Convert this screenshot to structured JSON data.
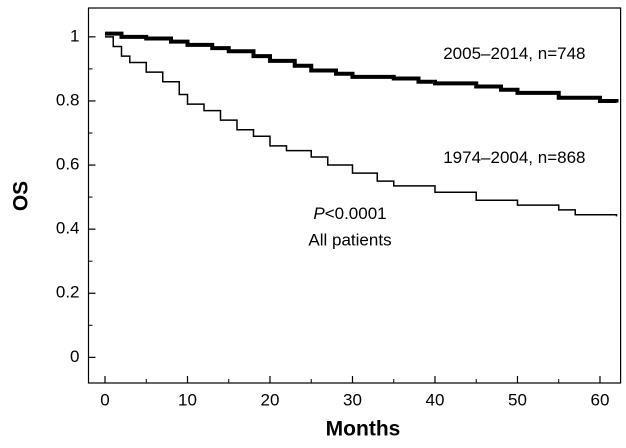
{
  "chart_data": {
    "type": "step",
    "xlabel": "Months",
    "ylabel": "OS",
    "xlim": [
      -2,
      62.5
    ],
    "ylim": [
      -0.08,
      1.09
    ],
    "xticks": [
      0,
      10,
      20,
      30,
      40,
      50,
      60
    ],
    "yticks": [
      0,
      0.2,
      0.4,
      0.6,
      0.8,
      1
    ],
    "xminor": [
      5,
      15,
      25,
      35,
      45,
      55
    ],
    "yminor": [
      0.1,
      0.3,
      0.5,
      0.7,
      0.9
    ],
    "series": [
      {
        "name": "2005–2014, n=748",
        "color": "#000000",
        "width": 4,
        "x": [
          0,
          2,
          5,
          8,
          10,
          13,
          15,
          18,
          20,
          23,
          25,
          28,
          30,
          35,
          38,
          40,
          45,
          48,
          50,
          55,
          60,
          62
        ],
        "values": [
          1.01,
          1.0,
          0.995,
          0.985,
          0.975,
          0.965,
          0.955,
          0.94,
          0.925,
          0.91,
          0.895,
          0.885,
          0.875,
          0.87,
          0.86,
          0.855,
          0.845,
          0.835,
          0.825,
          0.81,
          0.8,
          0.795
        ]
      },
      {
        "name": "1974–2004, n=868",
        "color": "#000000",
        "width": 1.5,
        "x": [
          0,
          1,
          2,
          3,
          5,
          7,
          9,
          10,
          12,
          14,
          16,
          18,
          20,
          22,
          25,
          27,
          30,
          33,
          35,
          40,
          45,
          50,
          55,
          57,
          62
        ],
        "values": [
          1.0,
          0.97,
          0.94,
          0.92,
          0.89,
          0.86,
          0.82,
          0.79,
          0.77,
          0.74,
          0.71,
          0.69,
          0.66,
          0.645,
          0.625,
          0.6,
          0.575,
          0.55,
          0.535,
          0.515,
          0.49,
          0.475,
          0.46,
          0.445,
          0.44
        ]
      }
    ],
    "annotations": [
      {
        "italic": "P",
        "rest": "<0.0001"
      },
      "All patients"
    ]
  }
}
